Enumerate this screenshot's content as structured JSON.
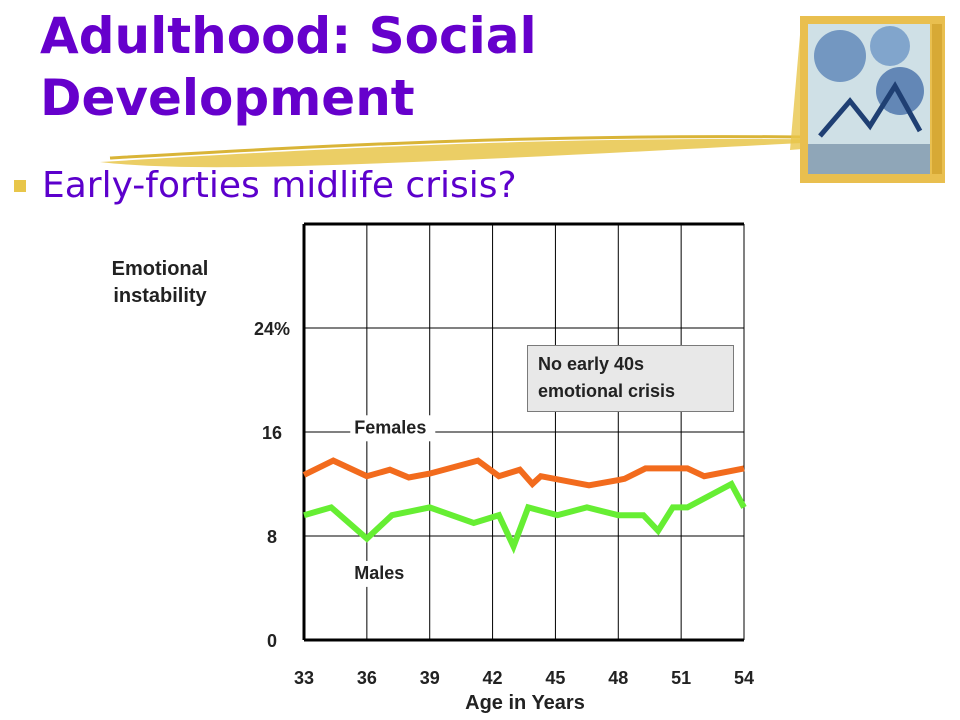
{
  "slide": {
    "title_line1": "Adulthood: Social",
    "title_line2": "Development",
    "bullet": "Early-forties midlife crisis?"
  },
  "colors": {
    "title": "#6600cc",
    "bullet_text": "#5c00cc",
    "bullet_mark": "#e8c64a",
    "females": "#f26b1d",
    "males": "#66ee33",
    "grid": "#000000"
  },
  "chart_data": {
    "type": "line",
    "title": "",
    "ylabel_line1": "Emotional",
    "ylabel_line2": "instability",
    "xlabel": "Age in Years",
    "xlim": [
      33,
      54
    ],
    "ylim": [
      0,
      32
    ],
    "x_ticks": [
      "33",
      "36",
      "39",
      "42",
      "45",
      "48",
      "51",
      "54"
    ],
    "y_ticks": [
      {
        "value": 0,
        "label": "0"
      },
      {
        "value": 8,
        "label": "8"
      },
      {
        "value": 16,
        "label": "16"
      },
      {
        "value": 24,
        "label": "24%"
      }
    ],
    "grid": "vertical and horizontal gridlines",
    "annotation_line1": "No early 40s",
    "annotation_line2": "emotional crisis",
    "series": [
      {
        "name": "Females",
        "color": "#f26b1d",
        "points": [
          [
            33,
            12.7
          ],
          [
            34.4,
            13.8
          ],
          [
            36,
            12.6
          ],
          [
            37.1,
            13.1
          ],
          [
            38,
            12.5
          ],
          [
            39,
            12.8
          ],
          [
            41.3,
            13.8
          ],
          [
            42.3,
            12.6
          ],
          [
            43.3,
            13.1
          ],
          [
            43.9,
            12.0
          ],
          [
            44.3,
            12.6
          ],
          [
            46.6,
            11.9
          ],
          [
            48,
            12.3
          ],
          [
            48.3,
            12.4
          ],
          [
            49.3,
            13.2
          ],
          [
            50.5,
            13.2
          ],
          [
            51.3,
            13.2
          ],
          [
            52.1,
            12.6
          ],
          [
            54,
            13.2
          ]
        ]
      },
      {
        "name": "Males",
        "color": "#66ee33",
        "points": [
          [
            33,
            9.6
          ],
          [
            34.3,
            10.2
          ],
          [
            36,
            7.8
          ],
          [
            37.2,
            9.6
          ],
          [
            39,
            10.2
          ],
          [
            41.1,
            9.0
          ],
          [
            42.3,
            9.6
          ],
          [
            43,
            7.2
          ],
          [
            43.7,
            10.2
          ],
          [
            45.1,
            9.6
          ],
          [
            46.5,
            10.2
          ],
          [
            48,
            9.6
          ],
          [
            49.2,
            9.6
          ],
          [
            49.9,
            8.4
          ],
          [
            50.6,
            10.2
          ],
          [
            51.3,
            10.2
          ],
          [
            53.4,
            12.0
          ],
          [
            54,
            10.2
          ]
        ]
      }
    ]
  }
}
